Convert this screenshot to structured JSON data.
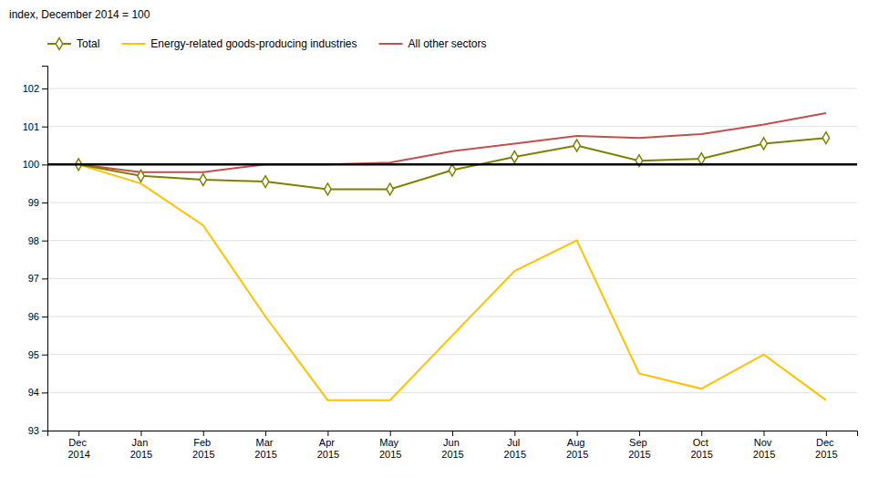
{
  "chart_data": {
    "type": "line",
    "ylabel": "index, December 2014 = 100",
    "categories": [
      "Dec 2014",
      "Jan 2015",
      "Feb 2015",
      "Mar 2015",
      "Apr 2015",
      "May 2015",
      "Jun 2015",
      "Jul 2015",
      "Aug 2015",
      "Sep 2015",
      "Oct 2015",
      "Nov 2015",
      "Dec 2015"
    ],
    "series": [
      {
        "name": "Total",
        "color": "#7f7f00",
        "marker": "diamond",
        "values": [
          100.0,
          99.7,
          99.6,
          99.55,
          99.35,
          99.35,
          99.85,
          100.2,
          100.5,
          100.1,
          100.15,
          100.55,
          100.7
        ]
      },
      {
        "name": "Energy-related goods-producing industries",
        "color": "#ffc000",
        "values": [
          100.0,
          99.5,
          98.4,
          96.0,
          93.8,
          93.8,
          95.5,
          97.2,
          98.0,
          94.5,
          94.1,
          95.0,
          93.8
        ]
      },
      {
        "name": "All other sectors",
        "color": "#c0504d",
        "values": [
          100.0,
          99.8,
          99.8,
          100.0,
          100.0,
          100.05,
          100.35,
          100.55,
          100.75,
          100.7,
          100.8,
          101.05,
          101.35
        ]
      }
    ],
    "reference_line": {
      "value": 100,
      "color": "#000000"
    },
    "ylim": [
      93,
      102.6
    ],
    "yticks": [
      93,
      94,
      95,
      96,
      97,
      98,
      99,
      100,
      101,
      102
    ],
    "grid": true,
    "legend": "upper left"
  }
}
